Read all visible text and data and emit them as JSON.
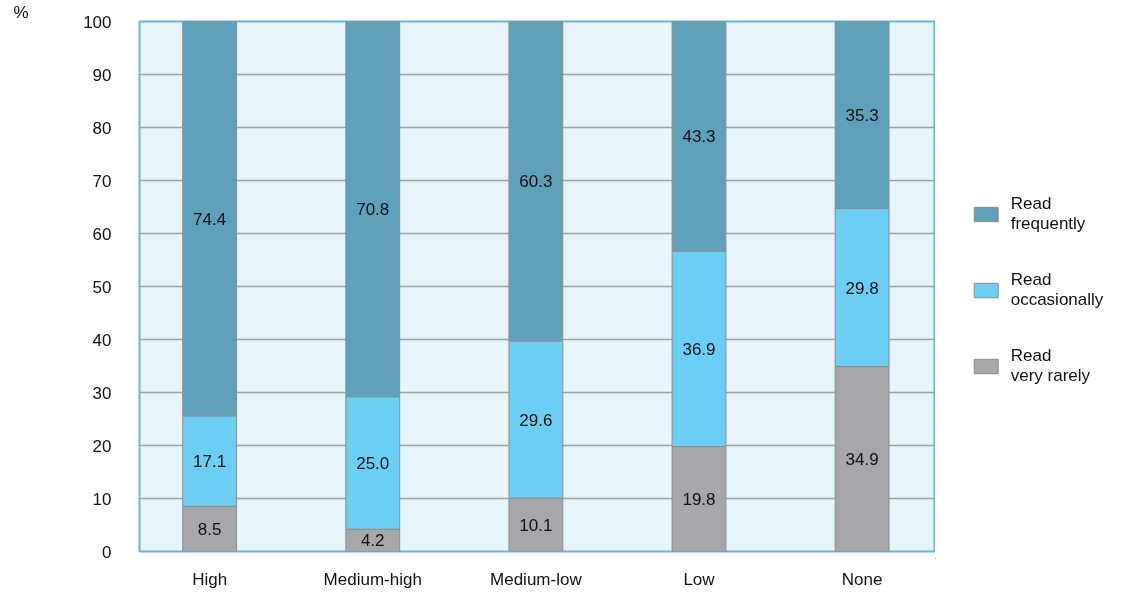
{
  "chart_data": {
    "type": "bar",
    "stacked": true,
    "ylabel": "%",
    "categories": [
      "High",
      "Medium-high",
      "Medium-low",
      "Low",
      "None"
    ],
    "series": [
      {
        "name": "Read very rarely",
        "color": "#a6a6ab",
        "values": [
          8.5,
          4.2,
          10.1,
          19.8,
          34.9
        ],
        "value_labels": [
          "8.5",
          "4.2",
          "10.1",
          "19.8",
          "34.9"
        ]
      },
      {
        "name": "Read occasionally",
        "color": "#6bcff5",
        "values": [
          17.1,
          25.0,
          29.6,
          36.9,
          29.8
        ],
        "value_labels": [
          "17.1",
          "25.0",
          "29.6",
          "36.9",
          "29.8"
        ]
      },
      {
        "name": "Read frequently",
        "color": "#5fa1bb",
        "values": [
          74.4,
          70.8,
          60.3,
          43.3,
          35.3
        ],
        "value_labels": [
          "74.4",
          "70.8",
          "60.3",
          "43.3",
          "35.3"
        ]
      }
    ],
    "ylim": [
      0,
      100
    ],
    "yticks": [
      0,
      10,
      20,
      30,
      40,
      50,
      60,
      70,
      80,
      90,
      100
    ],
    "grid": "y",
    "legend": "right"
  }
}
